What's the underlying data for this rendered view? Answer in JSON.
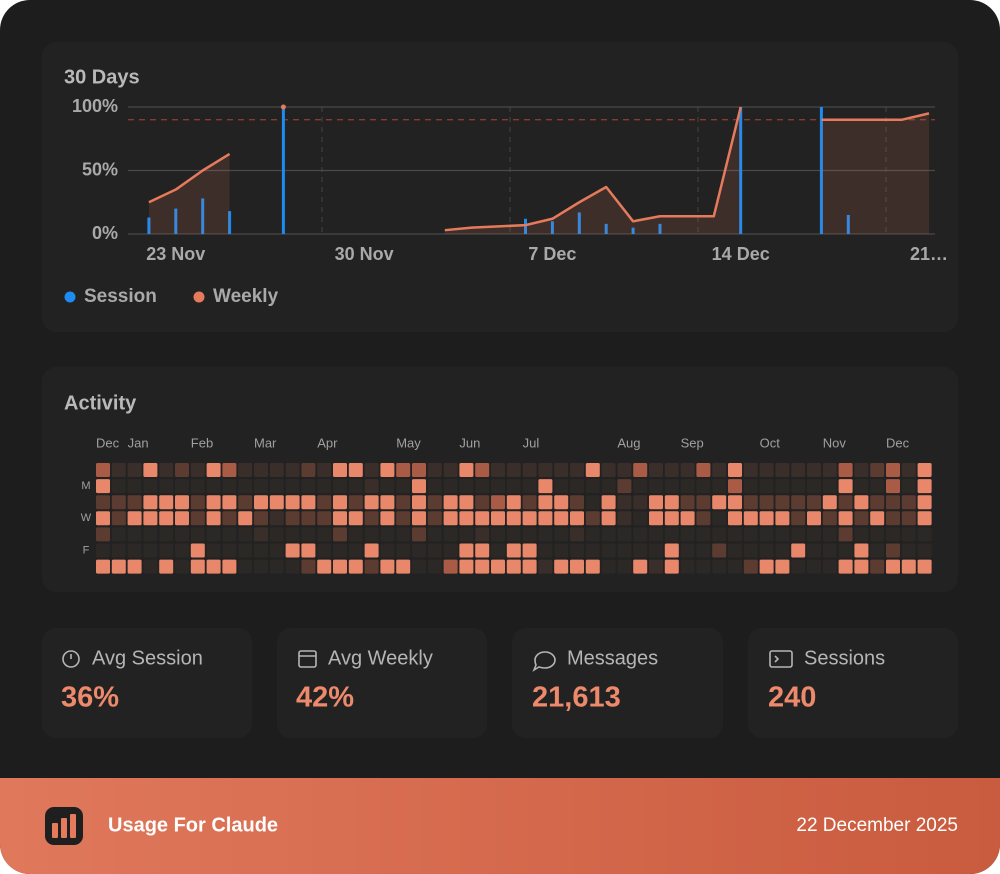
{
  "chart_data": [
    {
      "type": "line",
      "title": "30 Days",
      "categories": [
        null,
        null,
        "23 Nov",
        null,
        null,
        null,
        null,
        null,
        null,
        "30 Nov",
        null,
        null,
        null,
        null,
        null,
        null,
        "7 Dec",
        null,
        null,
        null,
        null,
        null,
        null,
        "14 Dec",
        null,
        null,
        null,
        null,
        null,
        null,
        "21…"
      ],
      "series": [
        {
          "name": "Session",
          "type": "bar",
          "color": "#1e8bf0",
          "values": [
            null,
            13,
            20,
            28,
            18,
            null,
            100,
            null,
            null,
            null,
            null,
            null,
            null,
            null,
            null,
            12,
            10,
            17,
            8,
            5,
            8,
            null,
            null,
            100,
            null,
            null,
            100,
            15,
            null,
            null,
            null
          ]
        },
        {
          "name": "Weekly",
          "type": "line",
          "color": "#e57b5c",
          "values": [
            null,
            25,
            35,
            50,
            63,
            null,
            100,
            null,
            null,
            null,
            null,
            null,
            3,
            5,
            6,
            7,
            12,
            25,
            37,
            10,
            14,
            14,
            14,
            100,
            null,
            null,
            90,
            90,
            90,
            90,
            95
          ]
        }
      ],
      "threshold": 90,
      "ylim": [
        0,
        100
      ],
      "yticks": [
        {
          "value": 0,
          "label": "0%"
        },
        {
          "value": 50,
          "label": "50%"
        },
        {
          "value": 100,
          "label": "100%"
        }
      ],
      "grid": true
    },
    {
      "type": "heatmap",
      "title": "Activity",
      "columns": [
        "Dec",
        null,
        "Jan",
        null,
        null,
        null,
        "Feb",
        null,
        null,
        null,
        "Mar",
        null,
        null,
        null,
        "Apr",
        null,
        null,
        null,
        null,
        "May",
        null,
        null,
        null,
        "Jun",
        null,
        null,
        null,
        "Jul",
        null,
        null,
        null,
        null,
        null,
        "Aug",
        null,
        null,
        null,
        "Sep",
        null,
        null,
        null,
        null,
        "Oct",
        null,
        null,
        null,
        "Nov",
        null,
        null,
        null,
        "Dec",
        null,
        null
      ],
      "rows": [
        null,
        "M",
        null,
        "W",
        null,
        "F",
        null
      ],
      "colors": [
        "#2b2826",
        "#3a2e2a",
        "#5c3b31",
        "#a95b45",
        "#e8876a"
      ],
      "values": [
        [
          3,
          1,
          1,
          4,
          1,
          2,
          1,
          4,
          3,
          1,
          1,
          1,
          1,
          2,
          1,
          4,
          4,
          1,
          4,
          3,
          3,
          1,
          1,
          4,
          3,
          1,
          1,
          1,
          1,
          1,
          1,
          4,
          1,
          1,
          3,
          1,
          1,
          1,
          3,
          1,
          4,
          1,
          1,
          1,
          1,
          1,
          1,
          3,
          1,
          2,
          3,
          1,
          4
        ],
        [
          4,
          0,
          0,
          0,
          0,
          0,
          0,
          0,
          0,
          0,
          0,
          0,
          0,
          0,
          0,
          0,
          0,
          1,
          0,
          0,
          4,
          0,
          0,
          0,
          0,
          0,
          0,
          0,
          4,
          0,
          0,
          0,
          0,
          2,
          0,
          0,
          0,
          0,
          0,
          0,
          3,
          0,
          0,
          0,
          0,
          0,
          0,
          4,
          0,
          0,
          3,
          0,
          4
        ],
        [
          2,
          2,
          2,
          4,
          4,
          4,
          2,
          4,
          4,
          2,
          4,
          4,
          4,
          4,
          2,
          4,
          2,
          4,
          4,
          2,
          4,
          2,
          4,
          4,
          2,
          3,
          4,
          2,
          4,
          4,
          2,
          0,
          4,
          1,
          1,
          4,
          4,
          2,
          2,
          4,
          4,
          2,
          2,
          2,
          2,
          2,
          4,
          2,
          4,
          2,
          2,
          2,
          4
        ],
        [
          4,
          2,
          4,
          4,
          4,
          4,
          2,
          4,
          2,
          4,
          2,
          1,
          2,
          2,
          2,
          4,
          4,
          2,
          4,
          2,
          4,
          2,
          4,
          4,
          4,
          4,
          4,
          4,
          4,
          4,
          4,
          2,
          4,
          1,
          0,
          4,
          4,
          4,
          2,
          0,
          4,
          4,
          4,
          4,
          2,
          4,
          2,
          4,
          2,
          4,
          2,
          2,
          4
        ],
        [
          2,
          0,
          0,
          0,
          0,
          0,
          0,
          0,
          0,
          0,
          1,
          0,
          0,
          0,
          0,
          2,
          0,
          0,
          0,
          0,
          2,
          0,
          0,
          0,
          1,
          0,
          0,
          0,
          0,
          0,
          1,
          0,
          0,
          0,
          0,
          0,
          0,
          0,
          0,
          0,
          0,
          0,
          0,
          0,
          0,
          0,
          0,
          2,
          0,
          0,
          0,
          0,
          0
        ],
        [
          0,
          0,
          0,
          0,
          0,
          0,
          4,
          0,
          0,
          0,
          0,
          0,
          4,
          4,
          0,
          0,
          0,
          4,
          0,
          0,
          0,
          0,
          0,
          4,
          4,
          0,
          4,
          4,
          0,
          0,
          0,
          0,
          0,
          0,
          0,
          0,
          4,
          0,
          0,
          2,
          0,
          0,
          0,
          0,
          4,
          0,
          0,
          0,
          4,
          0,
          2,
          0,
          0
        ],
        [
          4,
          4,
          4,
          0,
          4,
          0,
          4,
          4,
          4,
          0,
          0,
          0,
          0,
          2,
          4,
          4,
          4,
          2,
          4,
          4,
          0,
          0,
          3,
          4,
          4,
          4,
          4,
          4,
          1,
          4,
          4,
          4,
          0,
          0,
          4,
          1,
          4,
          0,
          0,
          0,
          0,
          2,
          4,
          4,
          0,
          0,
          0,
          4,
          4,
          2,
          4,
          4,
          4
        ]
      ]
    }
  ],
  "stats": [
    {
      "label": "Avg Session",
      "value": "36%"
    },
    {
      "label": "Avg Weekly",
      "value": "42%"
    },
    {
      "label": "Messages",
      "value": "21,613"
    },
    {
      "label": "Sessions",
      "value": "240"
    }
  ],
  "footer": {
    "title": "Usage For Claude",
    "date": "22 December 2025"
  }
}
